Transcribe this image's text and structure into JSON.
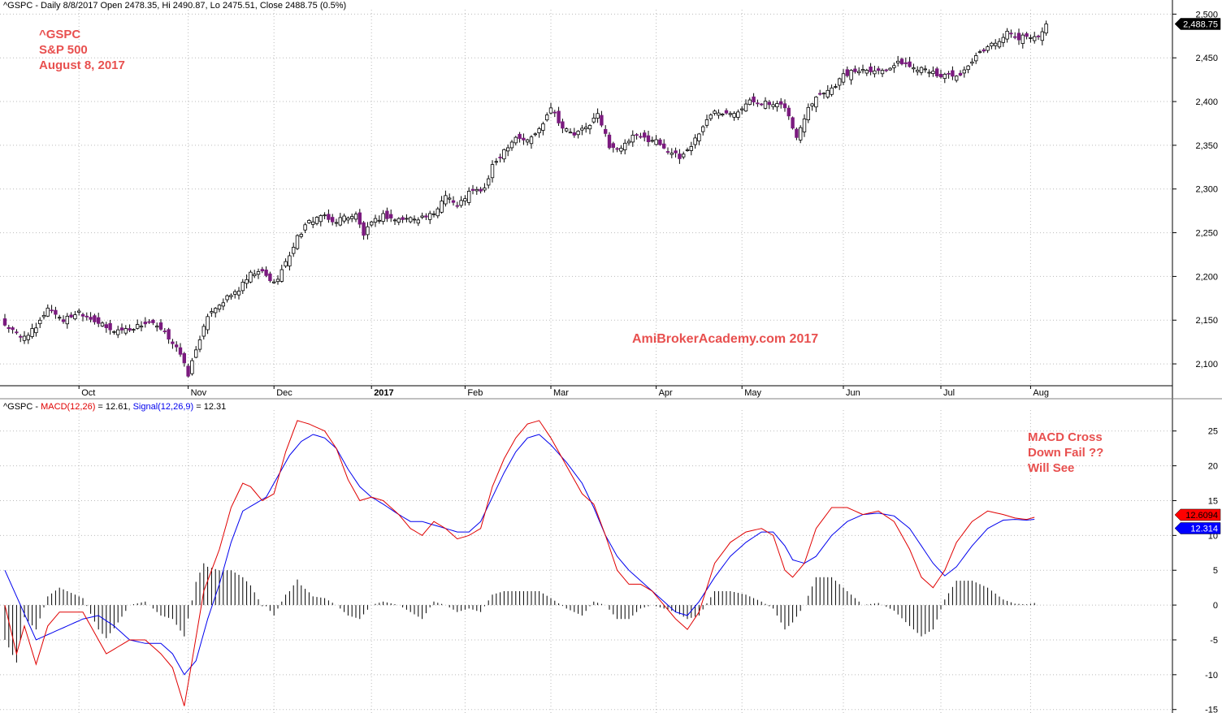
{
  "price_header": "^GSPC - Daily 8/8/2017 Open 2478.35, Hi 2490.87, Lo 2475.51, Close 2488.75 (0.5%)",
  "macd_header": {
    "prefix": "^GSPC - ",
    "macd_label": "MACD(12,26)",
    "macd_value": " = 12.61, ",
    "signal_label": "Signal(12,26,9)",
    "signal_value": " = 12.31"
  },
  "annotations": {
    "symbol": "^GSPC",
    "name": "S&P 500",
    "date": "August 8, 2017",
    "watermark": "AmiBrokerAcademy.com  2017",
    "macd_note_1": "MACD Cross",
    "macd_note_2": "Down Fail ??",
    "macd_note_3": "Will See"
  },
  "colors": {
    "up_candle_fill": "#ffffff",
    "down_candle_fill": "#7b1a7f",
    "macd_line": "#e00000",
    "signal_line": "#0000ee",
    "annotation_text": "#e8504f"
  },
  "chart_data": [
    {
      "type": "candlestick",
      "series_name": "^GSPC",
      "x_labels": [
        {
          "label": "Oct",
          "bar": 19
        },
        {
          "label": "Nov",
          "bar": 47
        },
        {
          "label": "Dec",
          "bar": 69
        },
        {
          "label": "2017",
          "bar": 94
        },
        {
          "label": "Feb",
          "bar": 118
        },
        {
          "label": "Mar",
          "bar": 140
        },
        {
          "label": "Apr",
          "bar": 167
        },
        {
          "label": "May",
          "bar": 189
        },
        {
          "label": "Jun",
          "bar": 215
        },
        {
          "label": "Jul",
          "bar": 240
        },
        {
          "label": "Aug",
          "bar": 263
        }
      ],
      "y_ticks": [
        "2,100",
        "2,150",
        "2,200",
        "2,250",
        "2,300",
        "2,350",
        "2,400",
        "2,450",
        "2,500"
      ],
      "ylim": [
        2075,
        2505
      ],
      "last_value_label": "2,488.75",
      "grid": true,
      "close_path": [
        [
          0,
          2145
        ],
        [
          4,
          2130
        ],
        [
          8,
          2140
        ],
        [
          11,
          2165
        ],
        [
          15,
          2150
        ],
        [
          19,
          2160
        ],
        [
          23,
          2150
        ],
        [
          27,
          2138
        ],
        [
          32,
          2140
        ],
        [
          37,
          2148
        ],
        [
          41,
          2135
        ],
        [
          44,
          2120
        ],
        [
          47,
          2088
        ],
        [
          50,
          2130
        ],
        [
          53,
          2162
        ],
        [
          57,
          2175
        ],
        [
          60,
          2185
        ],
        [
          63,
          2202
        ],
        [
          66,
          2205
        ],
        [
          69,
          2192
        ],
        [
          72,
          2215
        ],
        [
          75,
          2245
        ],
        [
          78,
          2262
        ],
        [
          81,
          2270
        ],
        [
          84,
          2262
        ],
        [
          87,
          2268
        ],
        [
          90,
          2270
        ],
        [
          92,
          2248
        ],
        [
          94,
          2260
        ],
        [
          97,
          2270
        ],
        [
          100,
          2265
        ],
        [
          103,
          2266
        ],
        [
          107,
          2268
        ],
        [
          110,
          2270
        ],
        [
          113,
          2295
        ],
        [
          116,
          2280
        ],
        [
          119,
          2296
        ],
        [
          123,
          2300
        ],
        [
          125,
          2325
        ],
        [
          128,
          2345
        ],
        [
          131,
          2360
        ],
        [
          134,
          2355
        ],
        [
          137,
          2368
        ],
        [
          140,
          2395
        ],
        [
          143,
          2370
        ],
        [
          146,
          2362
        ],
        [
          149,
          2370
        ],
        [
          152,
          2385
        ],
        [
          155,
          2350
        ],
        [
          158,
          2345
        ],
        [
          161,
          2360
        ],
        [
          164,
          2358
        ],
        [
          167,
          2355
        ],
        [
          170,
          2345
        ],
        [
          173,
          2335
        ],
        [
          176,
          2350
        ],
        [
          179,
          2372
        ],
        [
          182,
          2390
        ],
        [
          185,
          2388
        ],
        [
          188,
          2390
        ],
        [
          191,
          2400
        ],
        [
          194,
          2400
        ],
        [
          197,
          2395
        ],
        [
          200,
          2395
        ],
        [
          203,
          2358
        ],
        [
          206,
          2395
        ],
        [
          209,
          2410
        ],
        [
          212,
          2415
        ],
        [
          215,
          2430
        ],
        [
          218,
          2435
        ],
        [
          221,
          2438
        ],
        [
          224,
          2435
        ],
        [
          227,
          2440
        ],
        [
          230,
          2445
        ],
        [
          233,
          2438
        ],
        [
          236,
          2440
        ],
        [
          239,
          2428
        ],
        [
          242,
          2432
        ],
        [
          245,
          2428
        ],
        [
          248,
          2445
        ],
        [
          251,
          2460
        ],
        [
          254,
          2468
        ],
        [
          257,
          2478
        ],
        [
          260,
          2472
        ],
        [
          263,
          2476
        ],
        [
          265,
          2474
        ],
        [
          267,
          2488.75
        ]
      ]
    },
    {
      "type": "line",
      "title": "MACD(12,26)",
      "x_labels_shared": true,
      "y_ticks": [
        "-15",
        "-10",
        "-5",
        "0",
        "5",
        "10",
        "15",
        "20",
        "25"
      ],
      "ylim": [
        -15.5,
        28
      ],
      "grid": true,
      "series": [
        {
          "name": "MACD(12,26)",
          "points": [
            [
              0,
              0
            ],
            [
              3,
              -7
            ],
            [
              5,
              -3
            ],
            [
              8,
              -8.5
            ],
            [
              11,
              -3
            ],
            [
              14,
              -1
            ],
            [
              17,
              -1
            ],
            [
              20,
              -1
            ],
            [
              23,
              -4
            ],
            [
              26,
              -7
            ],
            [
              29,
              -6
            ],
            [
              32,
              -5
            ],
            [
              36,
              -5
            ],
            [
              40,
              -7
            ],
            [
              43,
              -9
            ],
            [
              46,
              -14.5
            ],
            [
              48,
              -8
            ],
            [
              51,
              2
            ],
            [
              55,
              8
            ],
            [
              58,
              14
            ],
            [
              61,
              17.5
            ],
            [
              63,
              17
            ],
            [
              66,
              15
            ],
            [
              69,
              16
            ],
            [
              72,
              22
            ],
            [
              75,
              26.5
            ],
            [
              78,
              26
            ],
            [
              82,
              25
            ],
            [
              85,
              22.5
            ],
            [
              88,
              18
            ],
            [
              91,
              15
            ],
            [
              94,
              15.5
            ],
            [
              97,
              15
            ],
            [
              101,
              13
            ],
            [
              104,
              11
            ],
            [
              107,
              10
            ],
            [
              110,
              12
            ],
            [
              113,
              11
            ],
            [
              116,
              9.5
            ],
            [
              119,
              10
            ],
            [
              122,
              11
            ],
            [
              125,
              17
            ],
            [
              128,
              21
            ],
            [
              131,
              24
            ],
            [
              134,
              26
            ],
            [
              137,
              26.5
            ],
            [
              140,
              24
            ],
            [
              144,
              20
            ],
            [
              148,
              16
            ],
            [
              151,
              14.5
            ],
            [
              154,
              10
            ],
            [
              157,
              5
            ],
            [
              160,
              3
            ],
            [
              163,
              3
            ],
            [
              166,
              2
            ],
            [
              169,
              0
            ],
            [
              172,
              -2
            ],
            [
              175,
              -3.5
            ],
            [
              178,
              -1
            ],
            [
              182,
              6
            ],
            [
              186,
              9
            ],
            [
              190,
              10.5
            ],
            [
              194,
              11
            ],
            [
              197,
              10
            ],
            [
              200,
              5
            ],
            [
              202,
              4
            ],
            [
              205,
              6
            ],
            [
              208,
              11
            ],
            [
              212,
              14
            ],
            [
              216,
              14
            ],
            [
              220,
              13
            ],
            [
              224,
              13.5
            ],
            [
              228,
              12
            ],
            [
              232,
              8
            ],
            [
              235,
              4
            ],
            [
              238,
              2.5
            ],
            [
              241,
              5
            ],
            [
              244,
              9
            ],
            [
              248,
              12
            ],
            [
              252,
              13.5
            ],
            [
              256,
              13
            ],
            [
              259,
              12.5
            ],
            [
              262,
              12.3
            ],
            [
              264,
              12.61
            ]
          ]
        },
        {
          "name": "Signal(12,26,9)",
          "points": [
            [
              0,
              5
            ],
            [
              4,
              0
            ],
            [
              8,
              -5
            ],
            [
              12,
              -4
            ],
            [
              16,
              -3
            ],
            [
              20,
              -2
            ],
            [
              24,
              -1.5
            ],
            [
              28,
              -3
            ],
            [
              32,
              -5
            ],
            [
              36,
              -5.5
            ],
            [
              40,
              -5.5
            ],
            [
              43,
              -7
            ],
            [
              46,
              -10
            ],
            [
              49,
              -8
            ],
            [
              52,
              -2
            ],
            [
              55,
              3
            ],
            [
              58,
              9
            ],
            [
              61,
              13.5
            ],
            [
              64,
              14.5
            ],
            [
              67,
              15.5
            ],
            [
              70,
              18.5
            ],
            [
              73,
              21.5
            ],
            [
              76,
              23.5
            ],
            [
              79,
              24.5
            ],
            [
              82,
              24
            ],
            [
              85,
              22.5
            ],
            [
              88,
              19.5
            ],
            [
              91,
              17
            ],
            [
              94,
              15.5
            ],
            [
              97,
              14.5
            ],
            [
              101,
              13
            ],
            [
              104,
              12
            ],
            [
              107,
              12
            ],
            [
              110,
              11.5
            ],
            [
              113,
              11
            ],
            [
              116,
              10.5
            ],
            [
              119,
              10.5
            ],
            [
              122,
              12
            ],
            [
              125,
              15.5
            ],
            [
              128,
              19
            ],
            [
              131,
              22
            ],
            [
              134,
              24
            ],
            [
              137,
              24.5
            ],
            [
              140,
              23
            ],
            [
              144,
              20.5
            ],
            [
              148,
              17.5
            ],
            [
              151,
              14
            ],
            [
              154,
              10
            ],
            [
              157,
              7
            ],
            [
              160,
              5
            ],
            [
              163,
              3.5
            ],
            [
              166,
              2
            ],
            [
              169,
              0.5
            ],
            [
              172,
              -1
            ],
            [
              175,
              -1.5
            ],
            [
              178,
              0.5
            ],
            [
              182,
              4
            ],
            [
              186,
              7
            ],
            [
              190,
              9
            ],
            [
              194,
              10.5
            ],
            [
              197,
              10.5
            ],
            [
              200,
              8.5
            ],
            [
              202,
              6.5
            ],
            [
              205,
              6
            ],
            [
              208,
              7
            ],
            [
              212,
              10
            ],
            [
              216,
              12
            ],
            [
              220,
              13
            ],
            [
              224,
              13.2
            ],
            [
              228,
              12.8
            ],
            [
              232,
              11
            ],
            [
              235,
              8.5
            ],
            [
              238,
              6
            ],
            [
              241,
              4.2
            ],
            [
              244,
              5.5
            ],
            [
              248,
              8.5
            ],
            [
              252,
              11
            ],
            [
              256,
              12.2
            ],
            [
              259,
              12.3
            ],
            [
              262,
              12.2
            ],
            [
              264,
              12.31
            ]
          ]
        }
      ],
      "last_value_labels": [
        "12.6094",
        "12.314"
      ]
    }
  ]
}
